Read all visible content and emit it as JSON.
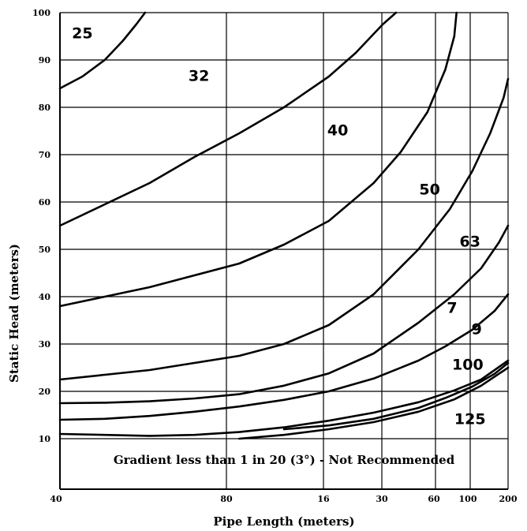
{
  "chart_data": {
    "type": "line",
    "xlabel": "Pipe Length (meters)",
    "ylabel": "Static Head (meters)",
    "x_ticks": [
      "40",
      "80",
      "16",
      "30",
      "60",
      "100",
      "200"
    ],
    "y_ticks": [
      10,
      20,
      30,
      40,
      50,
      60,
      70,
      80,
      90,
      100
    ],
    "ylim": [
      10,
      100
    ],
    "grid": true,
    "annotation": "Gradient less than 1 in 20 (3°) - Not Recommended",
    "series": [
      {
        "name": "25",
        "points": [
          [
            0,
            84
          ],
          [
            0.05,
            86.5
          ],
          [
            0.1,
            90
          ],
          [
            0.14,
            94
          ],
          [
            0.17,
            97.5
          ],
          [
            0.19,
            100
          ]
        ]
      },
      {
        "name": "32",
        "points": [
          [
            0,
            55
          ],
          [
            0.1,
            59.5
          ],
          [
            0.2,
            64
          ],
          [
            0.3,
            69.5
          ],
          [
            0.4,
            74.5
          ],
          [
            0.5,
            80
          ],
          [
            0.6,
            86.5
          ],
          [
            0.66,
            91.5
          ],
          [
            0.72,
            97.5
          ],
          [
            0.75,
            100
          ]
        ]
      },
      {
        "name": "40",
        "points": [
          [
            0,
            38
          ],
          [
            0.1,
            40
          ],
          [
            0.2,
            42
          ],
          [
            0.3,
            44.5
          ],
          [
            0.4,
            47
          ],
          [
            0.5,
            51
          ],
          [
            0.6,
            56
          ],
          [
            0.7,
            64
          ],
          [
            0.76,
            70.5
          ],
          [
            0.82,
            79
          ],
          [
            0.86,
            88
          ],
          [
            0.88,
            95
          ],
          [
            0.885,
            100
          ]
        ]
      },
      {
        "name": "50",
        "points": [
          [
            0,
            22.5
          ],
          [
            0.1,
            23.5
          ],
          [
            0.2,
            24.5
          ],
          [
            0.3,
            26
          ],
          [
            0.4,
            27.5
          ],
          [
            0.5,
            30
          ],
          [
            0.6,
            34
          ],
          [
            0.7,
            40.5
          ],
          [
            0.8,
            50
          ],
          [
            0.87,
            58.5
          ],
          [
            0.92,
            66.5
          ],
          [
            0.96,
            74.5
          ],
          [
            0.99,
            82
          ],
          [
            1.0,
            86
          ]
        ]
      },
      {
        "name": "63",
        "points": [
          [
            0,
            17.5
          ],
          [
            0.1,
            17.6
          ],
          [
            0.2,
            17.9
          ],
          [
            0.3,
            18.5
          ],
          [
            0.4,
            19.4
          ],
          [
            0.5,
            21.2
          ],
          [
            0.6,
            23.8
          ],
          [
            0.7,
            28
          ],
          [
            0.8,
            34.5
          ],
          [
            0.88,
            40.5
          ],
          [
            0.94,
            46
          ],
          [
            0.98,
            51.5
          ],
          [
            1.0,
            55
          ]
        ]
      },
      {
        "name": "7",
        "points": [
          [
            0,
            14
          ],
          [
            0.1,
            14.2
          ],
          [
            0.2,
            14.8
          ],
          [
            0.3,
            15.7
          ],
          [
            0.4,
            16.8
          ],
          [
            0.5,
            18.2
          ],
          [
            0.6,
            20
          ],
          [
            0.7,
            22.7
          ],
          [
            0.8,
            26.5
          ],
          [
            0.86,
            29.5
          ],
          [
            0.92,
            33
          ],
          [
            0.97,
            37
          ],
          [
            1.0,
            40.5
          ]
        ]
      },
      {
        "name": "9",
        "points": [
          [
            0.5,
            12
          ],
          [
            0.6,
            12.8
          ],
          [
            0.7,
            14.2
          ],
          [
            0.8,
            16.5
          ],
          [
            0.86,
            18.6
          ],
          [
            0.92,
            21
          ],
          [
            0.97,
            23.7
          ],
          [
            1.0,
            26
          ]
        ]
      },
      {
        "name": "100",
        "points": [
          [
            0,
            11
          ],
          [
            0.1,
            10.8
          ],
          [
            0.2,
            10.6
          ],
          [
            0.3,
            10.8
          ],
          [
            0.4,
            11.4
          ],
          [
            0.5,
            12.4
          ],
          [
            0.6,
            13.8
          ],
          [
            0.7,
            15.5
          ],
          [
            0.8,
            17.7
          ],
          [
            0.88,
            20.2
          ],
          [
            0.94,
            22.5
          ],
          [
            1.0,
            26.5
          ]
        ]
      },
      {
        "name": "125",
        "points": [
          [
            0.4,
            10
          ],
          [
            0.5,
            10.8
          ],
          [
            0.6,
            12
          ],
          [
            0.7,
            13.5
          ],
          [
            0.8,
            15.7
          ],
          [
            0.88,
            18.3
          ],
          [
            0.94,
            21.2
          ],
          [
            1.0,
            25
          ]
        ]
      }
    ],
    "curve_labels": [
      {
        "text": "25",
        "x": 0.05,
        "y": 95.5
      },
      {
        "text": "32",
        "x": 0.31,
        "y": 86.5
      },
      {
        "text": "40",
        "x": 0.62,
        "y": 75
      },
      {
        "text": "50",
        "x": 0.825,
        "y": 62.5
      },
      {
        "text": "63",
        "x": 0.915,
        "y": 51.5
      },
      {
        "text": "7",
        "x": 0.875,
        "y": 37.5
      },
      {
        "text": "9",
        "x": 0.93,
        "y": 33
      },
      {
        "text": "100",
        "x": 0.91,
        "y": 25.5
      },
      {
        "text": "125",
        "x": 0.915,
        "y": 14
      }
    ]
  }
}
